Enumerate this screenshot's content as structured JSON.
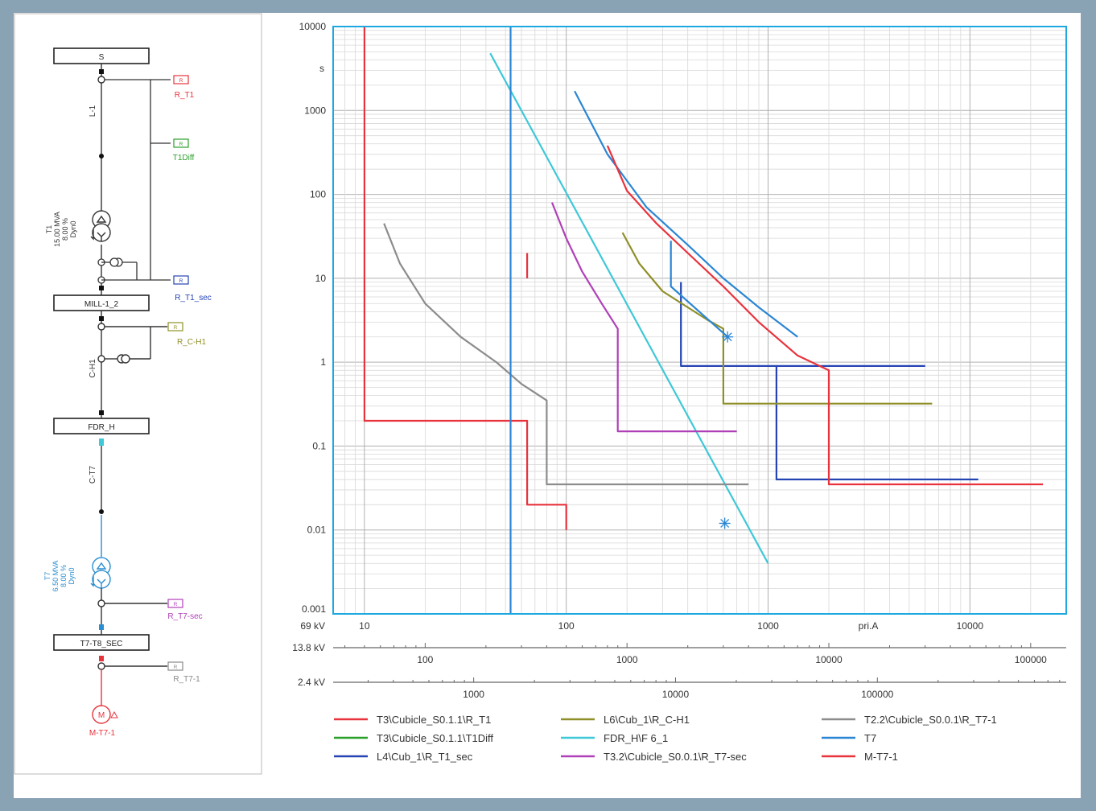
{
  "colors": {
    "frame_bg": "#8aa3b4",
    "panel_bg": "#ffffff",
    "plot_border": "#1ea8e0",
    "grid_major": "#b0b0b0",
    "grid_minor": "#d8d8d8"
  },
  "single_line_diagram": {
    "busbars": [
      {
        "id": "S",
        "label": "S"
      },
      {
        "id": "MILL",
        "label": "MILL-1_2"
      },
      {
        "id": "FDR",
        "label": "FDR_H"
      },
      {
        "id": "T7T8",
        "label": "T7-T8_SEC"
      }
    ],
    "lines": [
      {
        "id": "L1",
        "label": "L-1"
      },
      {
        "id": "CH1",
        "label": "C-H1"
      },
      {
        "id": "CT7",
        "label": "C-T7"
      }
    ],
    "transformers": [
      {
        "id": "T1",
        "name": "T1",
        "rating": "15.00 MVA",
        "impedance": "8.00 %",
        "vector": "Dyn0",
        "color": "#333333"
      },
      {
        "id": "T7",
        "name": "T7",
        "rating": "6.50 MVA",
        "impedance": "8.00 %",
        "vector": "Dyn0",
        "color": "#2a8ed0"
      }
    ],
    "relays": [
      {
        "id": "R_T1",
        "label": "R_T1",
        "box": "R",
        "color": "#e8323c"
      },
      {
        "id": "T1Diff",
        "label": "T1Diff",
        "box": "R",
        "color": "#2aa02a"
      },
      {
        "id": "R_T1_sec",
        "label": "R_T1_sec",
        "box": "R",
        "color": "#2444b4"
      },
      {
        "id": "R_C_H1",
        "label": "R_C-H1",
        "box": "R",
        "color": "#8f8f2a"
      },
      {
        "id": "R_T7_sec",
        "label": "R_T7-sec",
        "box": "R",
        "color": "#b040b8"
      },
      {
        "id": "R_T7_1",
        "label": "R_T7-1",
        "box": "R",
        "color": "#888888"
      }
    ],
    "motor": {
      "label": "M-T7-1",
      "symbol": "M",
      "color": "#e8323c"
    }
  },
  "chart_data": {
    "type": "line",
    "title": "",
    "ylabel": "s",
    "xlabel": "pri.A",
    "x_scale": "log",
    "y_scale": "log",
    "xlim": [
      7,
      30000
    ],
    "ylim": [
      0.001,
      10000
    ],
    "y_ticks": [
      "10000",
      "1000",
      "100",
      "10",
      "1",
      "0.1",
      "0.01",
      "0.001"
    ],
    "voltage_axes": [
      {
        "voltage": "69 kV",
        "ticks": [
          "10",
          "100",
          "1000",
          "10000"
        ],
        "unit_label": "pri.A"
      },
      {
        "voltage": "13.8 kV",
        "ticks": [
          "100",
          "1000",
          "10000",
          "100000"
        ]
      },
      {
        "voltage": "2.4 kV",
        "ticks": [
          "1000",
          "10000",
          "100000"
        ]
      }
    ],
    "grid": true,
    "legend_position": "bottom",
    "series": [
      {
        "name": "T3\\Cubicle_S0.1.1\\R_T1",
        "color": "#e8323c",
        "points": [
          [
            10,
            10000
          ],
          [
            10,
            0.2
          ],
          [
            64,
            0.2
          ],
          [
            64,
            0.02
          ],
          [
            100,
            0.02
          ],
          [
            100,
            0.01
          ]
        ]
      },
      {
        "name": "T3\\Cubicle_S0.1.1\\R_T1",
        "color": "#e8323c",
        "points": [
          [
            64,
            20
          ],
          [
            64,
            10
          ]
        ]
      },
      {
        "name": "T3\\Cubicle_S0.1.1\\T1Diff",
        "color": "#2aa02a",
        "points": []
      },
      {
        "name": "L4\\Cub_1\\R_T1_sec",
        "color": "#2444b4",
        "points": [
          [
            370,
            9
          ],
          [
            370,
            0.9
          ],
          [
            1100,
            0.9
          ],
          [
            1100,
            0.04
          ],
          [
            11000,
            0.04
          ]
        ]
      },
      {
        "name": "L4\\Cub_1\\R_T1_sec",
        "color": "#2444b4",
        "points": [
          [
            1100,
            0.9
          ],
          [
            6000,
            0.9
          ]
        ]
      },
      {
        "name": "L6\\Cub_1\\R_C-H1",
        "color": "#8f8f2a",
        "points": [
          [
            190,
            35
          ],
          [
            230,
            15
          ],
          [
            300,
            7
          ],
          [
            400,
            4.5
          ],
          [
            500,
            3.2
          ],
          [
            600,
            2.5
          ],
          [
            600,
            0.32
          ],
          [
            6500,
            0.32
          ]
        ]
      },
      {
        "name": "FDR_H\\F 6_1",
        "color": "#3ec8d8",
        "points": [
          [
            42,
            4800
          ],
          [
            1000,
            0.004
          ]
        ]
      },
      {
        "name": "T3.2\\Cubicle_S0.0.1\\R_T7-sec",
        "color": "#b040b8",
        "points": [
          [
            85,
            80
          ],
          [
            100,
            30
          ],
          [
            120,
            12
          ],
          [
            150,
            5
          ],
          [
            180,
            2.5
          ],
          [
            180,
            0.15
          ],
          [
            700,
            0.15
          ]
        ]
      },
      {
        "name": "T2.2\\Cubicle_S0.0.1\\R_T7-1",
        "color": "#8c8c8c",
        "points": [
          [
            12.5,
            45
          ],
          [
            15,
            15
          ],
          [
            20,
            5
          ],
          [
            30,
            2
          ],
          [
            45,
            1
          ],
          [
            60,
            0.55
          ],
          [
            80,
            0.35
          ],
          [
            80,
            0.035
          ],
          [
            800,
            0.035
          ]
        ]
      },
      {
        "name": "T7",
        "color": "#2a86d4",
        "points": [
          [
            53,
            10000
          ],
          [
            53,
            0.001
          ]
        ]
      },
      {
        "name": "T7",
        "color": "#2a86d4",
        "points": [
          [
            110,
            1700
          ],
          [
            160,
            300
          ],
          [
            250,
            70
          ],
          [
            400,
            25
          ],
          [
            600,
            10
          ],
          [
            900,
            4.5
          ],
          [
            1400,
            2
          ]
        ]
      },
      {
        "name": "T7",
        "color": "#2a86d4",
        "points": [
          [
            330,
            28
          ],
          [
            330,
            8
          ],
          [
            630,
            2
          ]
        ]
      },
      {
        "name": "M-T7-1",
        "color": "#e8323c",
        "points": [
          [
            160,
            380
          ],
          [
            200,
            110
          ],
          [
            280,
            45
          ],
          [
            400,
            20
          ],
          [
            600,
            8
          ],
          [
            900,
            3
          ],
          [
            1400,
            1.2
          ],
          [
            2000,
            0.8
          ],
          [
            2000,
            0.035
          ],
          [
            23000,
            0.035
          ]
        ]
      }
    ],
    "markers": [
      {
        "x": 630,
        "y": 2,
        "symbol": "*",
        "color": "#2a86d4"
      },
      {
        "x": 610,
        "y": 0.012,
        "symbol": "*",
        "color": "#2a86d4"
      }
    ],
    "legend": [
      {
        "name": "T3\\Cubicle_S0.1.1\\R_T1",
        "color": "#e8323c"
      },
      {
        "name": "L6\\Cub_1\\R_C-H1",
        "color": "#8f8f2a"
      },
      {
        "name": "T2.2\\Cubicle_S0.0.1\\R_T7-1",
        "color": "#8c8c8c"
      },
      {
        "name": "T3\\Cubicle_S0.1.1\\T1Diff",
        "color": "#2aa02a"
      },
      {
        "name": "FDR_H\\F 6_1",
        "color": "#3ec8d8"
      },
      {
        "name": "T7",
        "color": "#2a86d4"
      },
      {
        "name": "L4\\Cub_1\\R_T1_sec",
        "color": "#2444b4"
      },
      {
        "name": "T3.2\\Cubicle_S0.0.1\\R_T7-sec",
        "color": "#b040b8"
      },
      {
        "name": "M-T7-1",
        "color": "#e8323c"
      }
    ]
  }
}
